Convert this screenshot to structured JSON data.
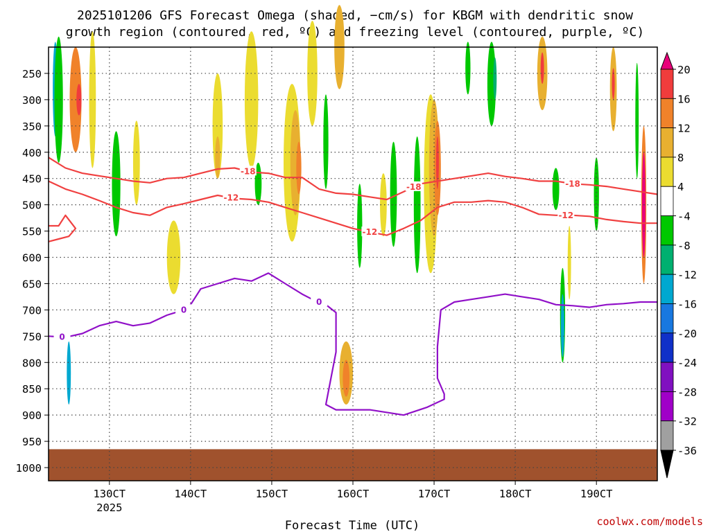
{
  "title": {
    "line1": "2025101206 GFS Forecast Omega (shaded, −cm/s) for KBGM with dendritic snow",
    "line2": "growth region (contoured, red, ºC) and freezing level (contoured, purple, ºC)"
  },
  "credit": "coolwx.com/models",
  "colors": {
    "dendritic_contour": "#f04040",
    "freezing_contour": "#9010c8",
    "ground": "#a0522d",
    "grid": "#444444"
  },
  "chart_data": {
    "type": "heatmap",
    "xlabel": "Forecast Time (UTC)",
    "ylabel": "",
    "grid": true,
    "x_ticks": [
      {
        "label": "130CT",
        "sub": "2025",
        "hours": 18
      },
      {
        "label": "140CT",
        "sub": "",
        "hours": 42
      },
      {
        "label": "150CT",
        "sub": "",
        "hours": 66
      },
      {
        "label": "160CT",
        "sub": "",
        "hours": 90
      },
      {
        "label": "170CT",
        "sub": "",
        "hours": 114
      },
      {
        "label": "180CT",
        "sub": "",
        "hours": 138
      },
      {
        "label": "190CT",
        "sub": "",
        "hours": 162
      }
    ],
    "x_range_hours": [
      0,
      180
    ],
    "y_ticks": [
      250,
      300,
      350,
      400,
      450,
      500,
      550,
      600,
      650,
      700,
      750,
      800,
      850,
      900,
      950,
      1000
    ],
    "y_range_hpa": [
      200,
      1025
    ],
    "colorbar": {
      "levels": [
        20,
        16,
        12,
        8,
        4,
        -4,
        -8,
        -12,
        -16,
        -20,
        -24,
        -28,
        -32,
        -36
      ],
      "colors": [
        "#e8007a",
        "#f03c3c",
        "#f0822a",
        "#e8b030",
        "#ebdc30",
        "#ffffff",
        "#00c800",
        "#00b070",
        "#00a8d0",
        "#1878e0",
        "#1030c8",
        "#8010c0",
        "#a000c8",
        "#a0a0a0",
        "#000000"
      ]
    },
    "blobs": [
      {
        "t": 2,
        "p": 280,
        "w": 1.5,
        "h": 180,
        "c": "#00a8d0"
      },
      {
        "t": 3,
        "p": 300,
        "w": 2.5,
        "h": 240,
        "c": "#00c800"
      },
      {
        "t": 6,
        "p": 820,
        "w": 1.2,
        "h": 120,
        "c": "#00a8d0"
      },
      {
        "t": 8,
        "p": 300,
        "w": 3.5,
        "h": 200,
        "c": "#f0822a"
      },
      {
        "t": 9,
        "p": 300,
        "w": 1.5,
        "h": 60,
        "c": "#f03c3c"
      },
      {
        "t": 13,
        "p": 300,
        "w": 2.0,
        "h": 260,
        "c": "#ebdc30"
      },
      {
        "t": 20,
        "p": 460,
        "w": 2.5,
        "h": 200,
        "c": "#00c800"
      },
      {
        "t": 26,
        "p": 420,
        "w": 2.0,
        "h": 160,
        "c": "#ebdc30"
      },
      {
        "t": 37,
        "p": 600,
        "w": 4.0,
        "h": 140,
        "c": "#ebdc30"
      },
      {
        "t": 50,
        "p": 350,
        "w": 3.0,
        "h": 200,
        "c": "#ebdc30"
      },
      {
        "t": 50,
        "p": 410,
        "w": 1.5,
        "h": 80,
        "c": "#e8b030"
      },
      {
        "t": 60,
        "p": 300,
        "w": 4.0,
        "h": 260,
        "c": "#ebdc30"
      },
      {
        "t": 62,
        "p": 460,
        "w": 2.0,
        "h": 80,
        "c": "#00c800"
      },
      {
        "t": 72,
        "p": 420,
        "w": 5.0,
        "h": 300,
        "c": "#ebdc30"
      },
      {
        "t": 73,
        "p": 420,
        "w": 3.0,
        "h": 200,
        "c": "#e8b030"
      },
      {
        "t": 74,
        "p": 430,
        "w": 1.5,
        "h": 100,
        "c": "#f0822a"
      },
      {
        "t": 78,
        "p": 250,
        "w": 3.0,
        "h": 200,
        "c": "#ebdc30"
      },
      {
        "t": 82,
        "p": 380,
        "w": 1.5,
        "h": 180,
        "c": "#00c800"
      },
      {
        "t": 86,
        "p": 200,
        "w": 3.0,
        "h": 160,
        "c": "#e8b030"
      },
      {
        "t": 88,
        "p": 820,
        "w": 4.0,
        "h": 120,
        "c": "#e8b030"
      },
      {
        "t": 88,
        "p": 830,
        "w": 2.0,
        "h": 70,
        "c": "#f0822a"
      },
      {
        "t": 92,
        "p": 540,
        "w": 1.5,
        "h": 160,
        "c": "#00c800"
      },
      {
        "t": 99,
        "p": 500,
        "w": 2.0,
        "h": 120,
        "c": "#ebdc30"
      },
      {
        "t": 102,
        "p": 480,
        "w": 2.0,
        "h": 200,
        "c": "#00c800"
      },
      {
        "t": 109,
        "p": 500,
        "w": 2.0,
        "h": 260,
        "c": "#00c800"
      },
      {
        "t": 113,
        "p": 460,
        "w": 4.0,
        "h": 340,
        "c": "#ebdc30"
      },
      {
        "t": 114,
        "p": 430,
        "w": 3.0,
        "h": 260,
        "c": "#e8b030"
      },
      {
        "t": 115,
        "p": 430,
        "w": 2.0,
        "h": 180,
        "c": "#f0822a"
      },
      {
        "t": 115,
        "p": 420,
        "w": 0.8,
        "h": 100,
        "c": "#f03c3c"
      },
      {
        "t": 124,
        "p": 240,
        "w": 1.5,
        "h": 100,
        "c": "#00c800"
      },
      {
        "t": 131,
        "p": 270,
        "w": 2.5,
        "h": 160,
        "c": "#00c800"
      },
      {
        "t": 132,
        "p": 260,
        "w": 1.0,
        "h": 80,
        "c": "#00b070"
      },
      {
        "t": 146,
        "p": 250,
        "w": 3.0,
        "h": 140,
        "c": "#e8b030"
      },
      {
        "t": 146,
        "p": 240,
        "w": 1.0,
        "h": 60,
        "c": "#f03c3c"
      },
      {
        "t": 150,
        "p": 470,
        "w": 2.0,
        "h": 80,
        "c": "#00c800"
      },
      {
        "t": 152,
        "p": 710,
        "w": 1.5,
        "h": 180,
        "c": "#00c800"
      },
      {
        "t": 152,
        "p": 730,
        "w": 1.0,
        "h": 120,
        "c": "#00a8d0"
      },
      {
        "t": 154,
        "p": 610,
        "w": 1.0,
        "h": 140,
        "c": "#ebdc30"
      },
      {
        "t": 162,
        "p": 480,
        "w": 1.5,
        "h": 140,
        "c": "#00c800"
      },
      {
        "t": 167,
        "p": 280,
        "w": 2.0,
        "h": 160,
        "c": "#e8b030"
      },
      {
        "t": 167,
        "p": 270,
        "w": 0.8,
        "h": 60,
        "c": "#f03c3c"
      },
      {
        "t": 174,
        "p": 340,
        "w": 1.0,
        "h": 220,
        "c": "#00c800"
      },
      {
        "t": 176,
        "p": 500,
        "w": 1.5,
        "h": 300,
        "c": "#f0822a"
      },
      {
        "t": 176,
        "p": 500,
        "w": 1.0,
        "h": 200,
        "c": "#e8007a"
      }
    ],
    "ground_pressure_hpa": 965,
    "contours": [
      {
        "name": "-18",
        "color": "#f04040",
        "label": {
          "text": "-18",
          "t": 59
        },
        "label2": {
          "text": "-18",
          "t": 108
        },
        "label3": {
          "text": "-18",
          "t": 155
        },
        "points": [
          [
            0,
            410
          ],
          [
            5,
            430
          ],
          [
            10,
            440
          ],
          [
            15,
            445
          ],
          [
            20,
            450
          ],
          [
            25,
            455
          ],
          [
            30,
            458
          ],
          [
            35,
            450
          ],
          [
            40,
            448
          ],
          [
            45,
            440
          ],
          [
            50,
            432
          ],
          [
            55,
            430
          ],
          [
            60,
            438
          ],
          [
            65,
            440
          ],
          [
            70,
            448
          ],
          [
            75,
            448
          ],
          [
            80,
            470
          ],
          [
            85,
            478
          ],
          [
            90,
            480
          ],
          [
            95,
            485
          ],
          [
            100,
            490
          ],
          [
            105,
            475
          ],
          [
            110,
            460
          ],
          [
            115,
            455
          ],
          [
            120,
            450
          ],
          [
            125,
            445
          ],
          [
            130,
            440
          ],
          [
            135,
            446
          ],
          [
            140,
            450
          ],
          [
            145,
            455
          ],
          [
            150,
            455
          ],
          [
            155,
            460
          ],
          [
            160,
            462
          ],
          [
            165,
            465
          ],
          [
            170,
            470
          ],
          [
            175,
            475
          ],
          [
            180,
            480
          ]
        ]
      },
      {
        "name": "-12",
        "color": "#f04040",
        "label": {
          "text": "-12",
          "t": 54
        },
        "label2": {
          "text": "-12",
          "t": 95
        },
        "label3": {
          "text": "-12",
          "t": 153
        },
        "points": [
          [
            0,
            455
          ],
          [
            5,
            470
          ],
          [
            10,
            480
          ],
          [
            15,
            492
          ],
          [
            20,
            505
          ],
          [
            25,
            515
          ],
          [
            30,
            520
          ],
          [
            35,
            505
          ],
          [
            40,
            498
          ],
          [
            45,
            490
          ],
          [
            50,
            482
          ],
          [
            55,
            488
          ],
          [
            60,
            490
          ],
          [
            65,
            495
          ],
          [
            70,
            505
          ],
          [
            75,
            515
          ],
          [
            80,
            525
          ],
          [
            85,
            535
          ],
          [
            90,
            545
          ],
          [
            95,
            552
          ],
          [
            100,
            558
          ],
          [
            105,
            545
          ],
          [
            110,
            530
          ],
          [
            115,
            505
          ],
          [
            120,
            495
          ],
          [
            125,
            495
          ],
          [
            130,
            492
          ],
          [
            135,
            495
          ],
          [
            140,
            505
          ],
          [
            145,
            518
          ],
          [
            150,
            520
          ],
          [
            155,
            520
          ],
          [
            160,
            522
          ],
          [
            165,
            528
          ],
          [
            170,
            532
          ],
          [
            175,
            535
          ],
          [
            180,
            535
          ]
        ]
      },
      {
        "name": "-12b",
        "color": "#f04040",
        "label": {
          "text": "",
          "t": 0
        },
        "label2": {
          "text": "",
          "t": 0
        },
        "label3": {
          "text": "",
          "t": 0
        },
        "points": [
          [
            0,
            540
          ],
          [
            3,
            540
          ],
          [
            5,
            520
          ],
          [
            8,
            545
          ],
          [
            6,
            560
          ],
          [
            3,
            565
          ],
          [
            0,
            570
          ]
        ]
      },
      {
        "name": "0",
        "color": "#9010c8",
        "label": {
          "text": "0",
          "t": 4
        },
        "label2": {
          "text": "0",
          "t": 40
        },
        "label3": {
          "text": "0",
          "t": 80
        },
        "points": [
          [
            0,
            750
          ],
          [
            5,
            752
          ],
          [
            10,
            745
          ],
          [
            15,
            730
          ],
          [
            20,
            722
          ],
          [
            25,
            730
          ],
          [
            30,
            725
          ],
          [
            35,
            710
          ],
          [
            40,
            700
          ],
          [
            42,
            690
          ],
          [
            45,
            660
          ],
          [
            50,
            650
          ],
          [
            55,
            640
          ],
          [
            60,
            645
          ],
          [
            65,
            630
          ],
          [
            70,
            650
          ],
          [
            75,
            670
          ],
          [
            78,
            680
          ],
          [
            82,
            690
          ],
          [
            85,
            705
          ],
          [
            85,
            780
          ],
          [
            82,
            880
          ],
          [
            85,
            890
          ],
          [
            95,
            890
          ],
          [
            105,
            900
          ],
          [
            112,
            885
          ],
          [
            117,
            870
          ],
          [
            117,
            860
          ],
          [
            115,
            830
          ],
          [
            115,
            770
          ],
          [
            116,
            700
          ],
          [
            120,
            685
          ],
          [
            125,
            680
          ],
          [
            130,
            675
          ],
          [
            135,
            670
          ],
          [
            140,
            675
          ],
          [
            145,
            680
          ],
          [
            150,
            690
          ],
          [
            155,
            692
          ],
          [
            160,
            695
          ],
          [
            165,
            690
          ],
          [
            170,
            688
          ],
          [
            175,
            685
          ],
          [
            180,
            685
          ]
        ]
      }
    ]
  }
}
